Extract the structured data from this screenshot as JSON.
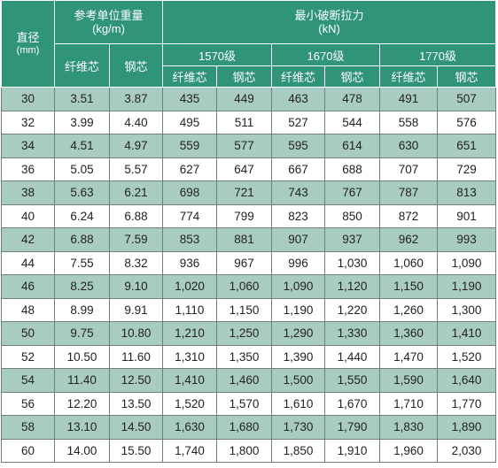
{
  "header": {
    "diameter": "直径",
    "diameter_unit": "(mm)",
    "weight_title": "参考单位重量",
    "weight_unit": "(kg/m)",
    "force_title": "最小破断拉力",
    "force_unit": "(kN)",
    "fiber_core": "纤维芯",
    "steel_core": "钢芯",
    "grade_1570": "1570级",
    "grade_1670": "1670级",
    "grade_1770": "1770级"
  },
  "rows": [
    [
      "30",
      "3.51",
      "3.87",
      "435",
      "449",
      "463",
      "478",
      "491",
      "507"
    ],
    [
      "32",
      "3.99",
      "4.40",
      "495",
      "511",
      "527",
      "544",
      "558",
      "576"
    ],
    [
      "34",
      "4.51",
      "4.97",
      "559",
      "577",
      "595",
      "614",
      "630",
      "651"
    ],
    [
      "36",
      "5.05",
      "5.57",
      "627",
      "647",
      "667",
      "688",
      "707",
      "729"
    ],
    [
      "38",
      "5.63",
      "6.21",
      "698",
      "721",
      "743",
      "767",
      "787",
      "813"
    ],
    [
      "40",
      "6.24",
      "6.88",
      "774",
      "799",
      "823",
      "850",
      "872",
      "901"
    ],
    [
      "42",
      "6.88",
      "7.59",
      "853",
      "881",
      "907",
      "937",
      "962",
      "993"
    ],
    [
      "44",
      "7.55",
      "8.32",
      "936",
      "967",
      "996",
      "1,030",
      "1,060",
      "1,090"
    ],
    [
      "46",
      "8.25",
      "9.10",
      "1,020",
      "1,060",
      "1,090",
      "1,120",
      "1,150",
      "1,190"
    ],
    [
      "48",
      "8.99",
      "9.91",
      "1,110",
      "1,150",
      "1,190",
      "1,220",
      "1,260",
      "1,300"
    ],
    [
      "50",
      "9.75",
      "10.80",
      "1,210",
      "1,250",
      "1,290",
      "1,330",
      "1,360",
      "1,410"
    ],
    [
      "52",
      "10.50",
      "11.60",
      "1,310",
      "1,350",
      "1,390",
      "1,440",
      "1,470",
      "1,520"
    ],
    [
      "54",
      "11.40",
      "12.50",
      "1,410",
      "1,460",
      "1,500",
      "1,550",
      "1,590",
      "1,640"
    ],
    [
      "56",
      "12.20",
      "13.50",
      "1,520",
      "1,570",
      "1,610",
      "1,670",
      "1,710",
      "1,770"
    ],
    [
      "58",
      "13.10",
      "14.50",
      "1,630",
      "1,680",
      "1,730",
      "1,790",
      "1,830",
      "1,890"
    ],
    [
      "60",
      "14.00",
      "15.50",
      "1,740",
      "1,800",
      "1,850",
      "1,910",
      "1,960",
      "2,030"
    ]
  ]
}
